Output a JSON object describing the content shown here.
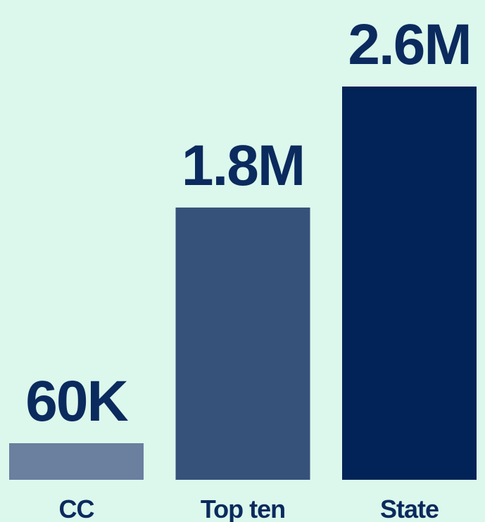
{
  "chart_data": {
    "type": "bar",
    "categories": [
      "CC",
      "Top ten",
      "State"
    ],
    "values": [
      60000,
      1800000,
      2600000
    ],
    "value_labels": [
      "60K",
      "1.8M",
      "2.6M"
    ],
    "title": "",
    "xlabel": "",
    "ylabel": "",
    "ylim": [
      0,
      2600000
    ],
    "grid": false,
    "legend": "none",
    "colors": {
      "background": "#dcf8ec",
      "text": "#0b2a5e",
      "bars": [
        "#6b7f9f",
        "#36527a",
        "#012357"
      ]
    }
  }
}
